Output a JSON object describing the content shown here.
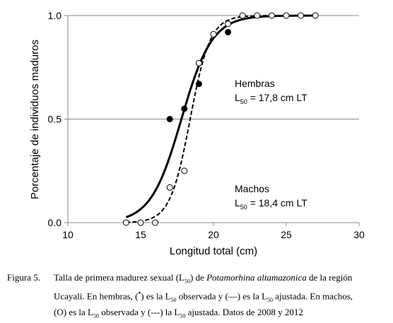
{
  "chart_data": {
    "type": "scatter",
    "xlabel": "Longitud total (cm)",
    "ylabel": "Porcentaje de individuos maduros",
    "xlim": [
      10,
      30
    ],
    "ylim": [
      0,
      1
    ],
    "xticks": [
      "10",
      "15",
      "20",
      "25",
      "30"
    ],
    "yticks": [
      "0.0",
      "0.5",
      "1.0"
    ],
    "grid": "horizontal at 0.5",
    "series": [
      {
        "group": "Hembras",
        "observed": {
          "marker": "filled-circle",
          "x": [
            17,
            18,
            19,
            21
          ],
          "y": [
            0.5,
            0.55,
            0.67,
            0.92
          ]
        },
        "fitted": {
          "line": "solid",
          "L50": 17.8,
          "x_range": [
            14,
            27
          ]
        }
      },
      {
        "group": "Machos",
        "observed": {
          "marker": "open-circle",
          "x": [
            14,
            15,
            16,
            17,
            18,
            19,
            20,
            21,
            22,
            23,
            24,
            25,
            26,
            27
          ],
          "y": [
            0.0,
            0.0,
            0.0,
            0.17,
            0.25,
            0.77,
            0.91,
            0.96,
            1.0,
            1.0,
            1.0,
            1.0,
            1.0,
            1.0
          ]
        },
        "fitted": {
          "line": "dashed",
          "L50": 18.4,
          "x_range": [
            14,
            27
          ]
        }
      }
    ],
    "annotations": {
      "hembras_title": "Hembras",
      "hembras_l50_prefix": "L",
      "hembras_l50_sub": "50",
      "hembras_l50_value": " = 17,8 cm LT",
      "machos_title": "Machos",
      "machos_l50_prefix": "L",
      "machos_l50_sub": "50",
      "machos_l50_value": " = 18,4 cm LT"
    }
  },
  "caption": {
    "fig_label": "Figura 5.",
    "t1": "Talla de primera madurez sexual (L",
    "t1_sub": "50",
    "t2": ") de ",
    "species": "Potamorhina altamazonica",
    "t3": " de la región",
    "t4": "Ucayali. En hembras, (",
    "dot_symbol": "•",
    "t5": ") es la L",
    "t5_sub": "50",
    "t6": " observada y (—) es la L",
    "t6_sub": "50",
    "t7": " ajustada. En machos,",
    "t8": "(O) es la L",
    "t8_sub": "50",
    "t9": " observada y (---) la L",
    "t9_sub": "50",
    "t10": " ajustada. Datos de 2008 y 2012"
  }
}
